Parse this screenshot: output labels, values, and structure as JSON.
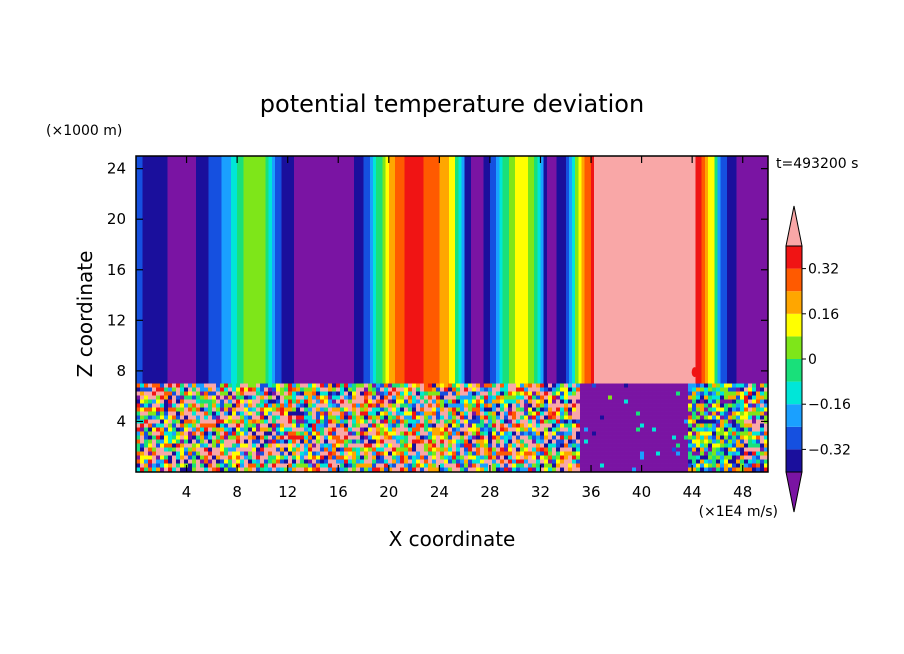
{
  "chart_data": {
    "type": "heatmap",
    "title": "potential temperature deviation",
    "xlabel": "X coordinate",
    "ylabel": "Z coordinate",
    "x_unit_label": "(×1E4 m/s)",
    "y_unit_label": "(×1000 m)",
    "time_label": "t=493200 s",
    "xlim": [
      0,
      50
    ],
    "ylim": [
      0,
      25
    ],
    "x_ticks": [
      4,
      8,
      12,
      16,
      20,
      24,
      28,
      32,
      36,
      40,
      44,
      48
    ],
    "y_ticks": [
      4,
      8,
      12,
      16,
      20,
      24
    ],
    "upper_layer_base": 7,
    "colorbar": {
      "levels": [
        -0.4,
        -0.32,
        -0.24,
        -0.16,
        -0.08,
        0,
        0.08,
        0.16,
        0.24,
        0.32,
        0.4
      ],
      "tick_labels": [
        "0.32",
        "0.16",
        "0",
        "−0.16",
        "−0.32"
      ],
      "tick_values": [
        0.32,
        0.16,
        0,
        -0.16,
        -0.32
      ],
      "colors": [
        "#7a14a3",
        "#1a0f9c",
        "#1550e0",
        "#1aa0ff",
        "#00e6d8",
        "#19e07a",
        "#7ee619",
        "#ffff00",
        "#ffa600",
        "#ff5a00",
        "#f01414",
        "#f9a7a7"
      ]
    },
    "upper_band_values_by_x": [
      [
        0,
        -0.3
      ],
      [
        1,
        -0.36
      ],
      [
        4,
        -0.45
      ],
      [
        7,
        -0.2
      ],
      [
        8.5,
        0.0
      ],
      [
        10,
        0.05
      ],
      [
        11,
        -0.3
      ],
      [
        13,
        -0.45
      ],
      [
        16,
        -0.5
      ],
      [
        18,
        -0.3
      ],
      [
        19.3,
        0.0
      ],
      [
        20.5,
        0.3
      ],
      [
        22,
        0.35
      ],
      [
        23.5,
        0.28
      ],
      [
        25,
        0.1
      ],
      [
        26,
        -0.35
      ],
      [
        27,
        -0.45
      ],
      [
        28.5,
        -0.2
      ],
      [
        29.5,
        0.05
      ],
      [
        30.5,
        0.15
      ],
      [
        31.5,
        0.0
      ],
      [
        32.5,
        -0.45
      ],
      [
        34,
        -0.3
      ],
      [
        35,
        0.1
      ],
      [
        35.7,
        0.3
      ],
      [
        36.5,
        0.45
      ],
      [
        44,
        0.45
      ],
      [
        45.5,
        0.1
      ],
      [
        46,
        -0.2
      ],
      [
        47,
        -0.36
      ],
      [
        48,
        -0.45
      ],
      [
        50,
        -0.4
      ]
    ]
  }
}
